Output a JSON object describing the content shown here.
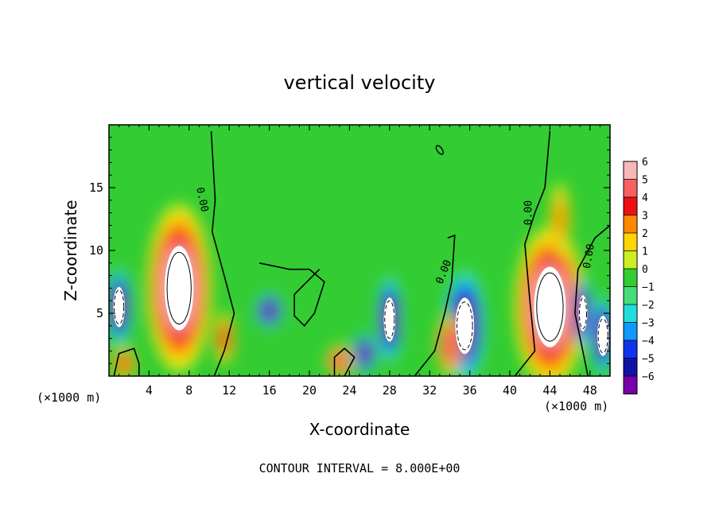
{
  "chart_data": {
    "type": "heatmap",
    "title": "vertical velocity",
    "xlabel": "X-coordinate",
    "ylabel": "Z-coordinate",
    "x_unit_left": "(×1000 m)",
    "x_unit_right": "(×1000 m)",
    "xlim": [
      0,
      50
    ],
    "ylim": [
      0,
      20
    ],
    "xticks": [
      "4",
      "8",
      "12",
      "16",
      "20",
      "24",
      "28",
      "32",
      "36",
      "40",
      "44",
      "48"
    ],
    "xtick_values": [
      4,
      8,
      12,
      16,
      20,
      24,
      28,
      32,
      36,
      40,
      44,
      48
    ],
    "yticks": [
      "5",
      "10",
      "15"
    ],
    "ytick_values": [
      5,
      10,
      15
    ],
    "colorbar": {
      "labels": [
        "6",
        "5",
        "4",
        "3",
        "2",
        "1",
        "0",
        "−1",
        "−2",
        "−3",
        "−4",
        "−5",
        "−6"
      ],
      "colors": [
        "#f7b8b8",
        "#f76060",
        "#ee1010",
        "#ff8800",
        "#ffd400",
        "#ccee22",
        "#33cc33",
        "#44dd77",
        "#22dddd",
        "#1199ff",
        "#1133ee",
        "#1111aa",
        "#7700aa"
      ],
      "range": [
        -6,
        6
      ]
    },
    "contour_label": "0.00",
    "note": "CONTOUR INTERVAL = 8.000E+00",
    "features": [
      {
        "x": 7.0,
        "z": 7.0,
        "w": 8,
        "rx": 2.0,
        "rz": 4.2
      },
      {
        "x": 44.0,
        "z": 5.5,
        "w": 8,
        "rx": 2.2,
        "rz": 4.0
      },
      {
        "x": 1.0,
        "z": 5.5,
        "w": -7,
        "rx": 0.8,
        "rz": 2.0
      },
      {
        "x": 16.0,
        "z": 5.2,
        "w": -6,
        "rx": 0.9,
        "rz": 0.9
      },
      {
        "x": 28.0,
        "z": 4.5,
        "w": -7,
        "rx": 0.8,
        "rz": 2.2
      },
      {
        "x": 35.5,
        "z": 4.0,
        "w": -7,
        "rx": 1.3,
        "rz": 2.8
      },
      {
        "x": 47.3,
        "z": 5.0,
        "w": -7,
        "rx": 0.6,
        "rz": 1.8
      },
      {
        "x": 49.3,
        "z": 3.2,
        "w": -7,
        "rx": 0.8,
        "rz": 2.0
      },
      {
        "x": 25.5,
        "z": 1.8,
        "w": -6,
        "rx": 0.8,
        "rz": 1.0
      },
      {
        "x": 34.0,
        "z": 2.5,
        "w": 5,
        "rx": 0.8,
        "rz": 1.5
      },
      {
        "x": 11.5,
        "z": 3.0,
        "w": 4,
        "rx": 0.6,
        "rz": 1.3
      },
      {
        "x": 23.0,
        "z": 1.2,
        "w": 5,
        "rx": 0.8,
        "rz": 0.8
      },
      {
        "x": 1.5,
        "z": 1.0,
        "w": 4,
        "rx": 0.7,
        "rz": 0.8
      },
      {
        "x": 45.0,
        "z": 12.5,
        "w": 3,
        "rx": 0.6,
        "rz": 1.8
      }
    ]
  }
}
